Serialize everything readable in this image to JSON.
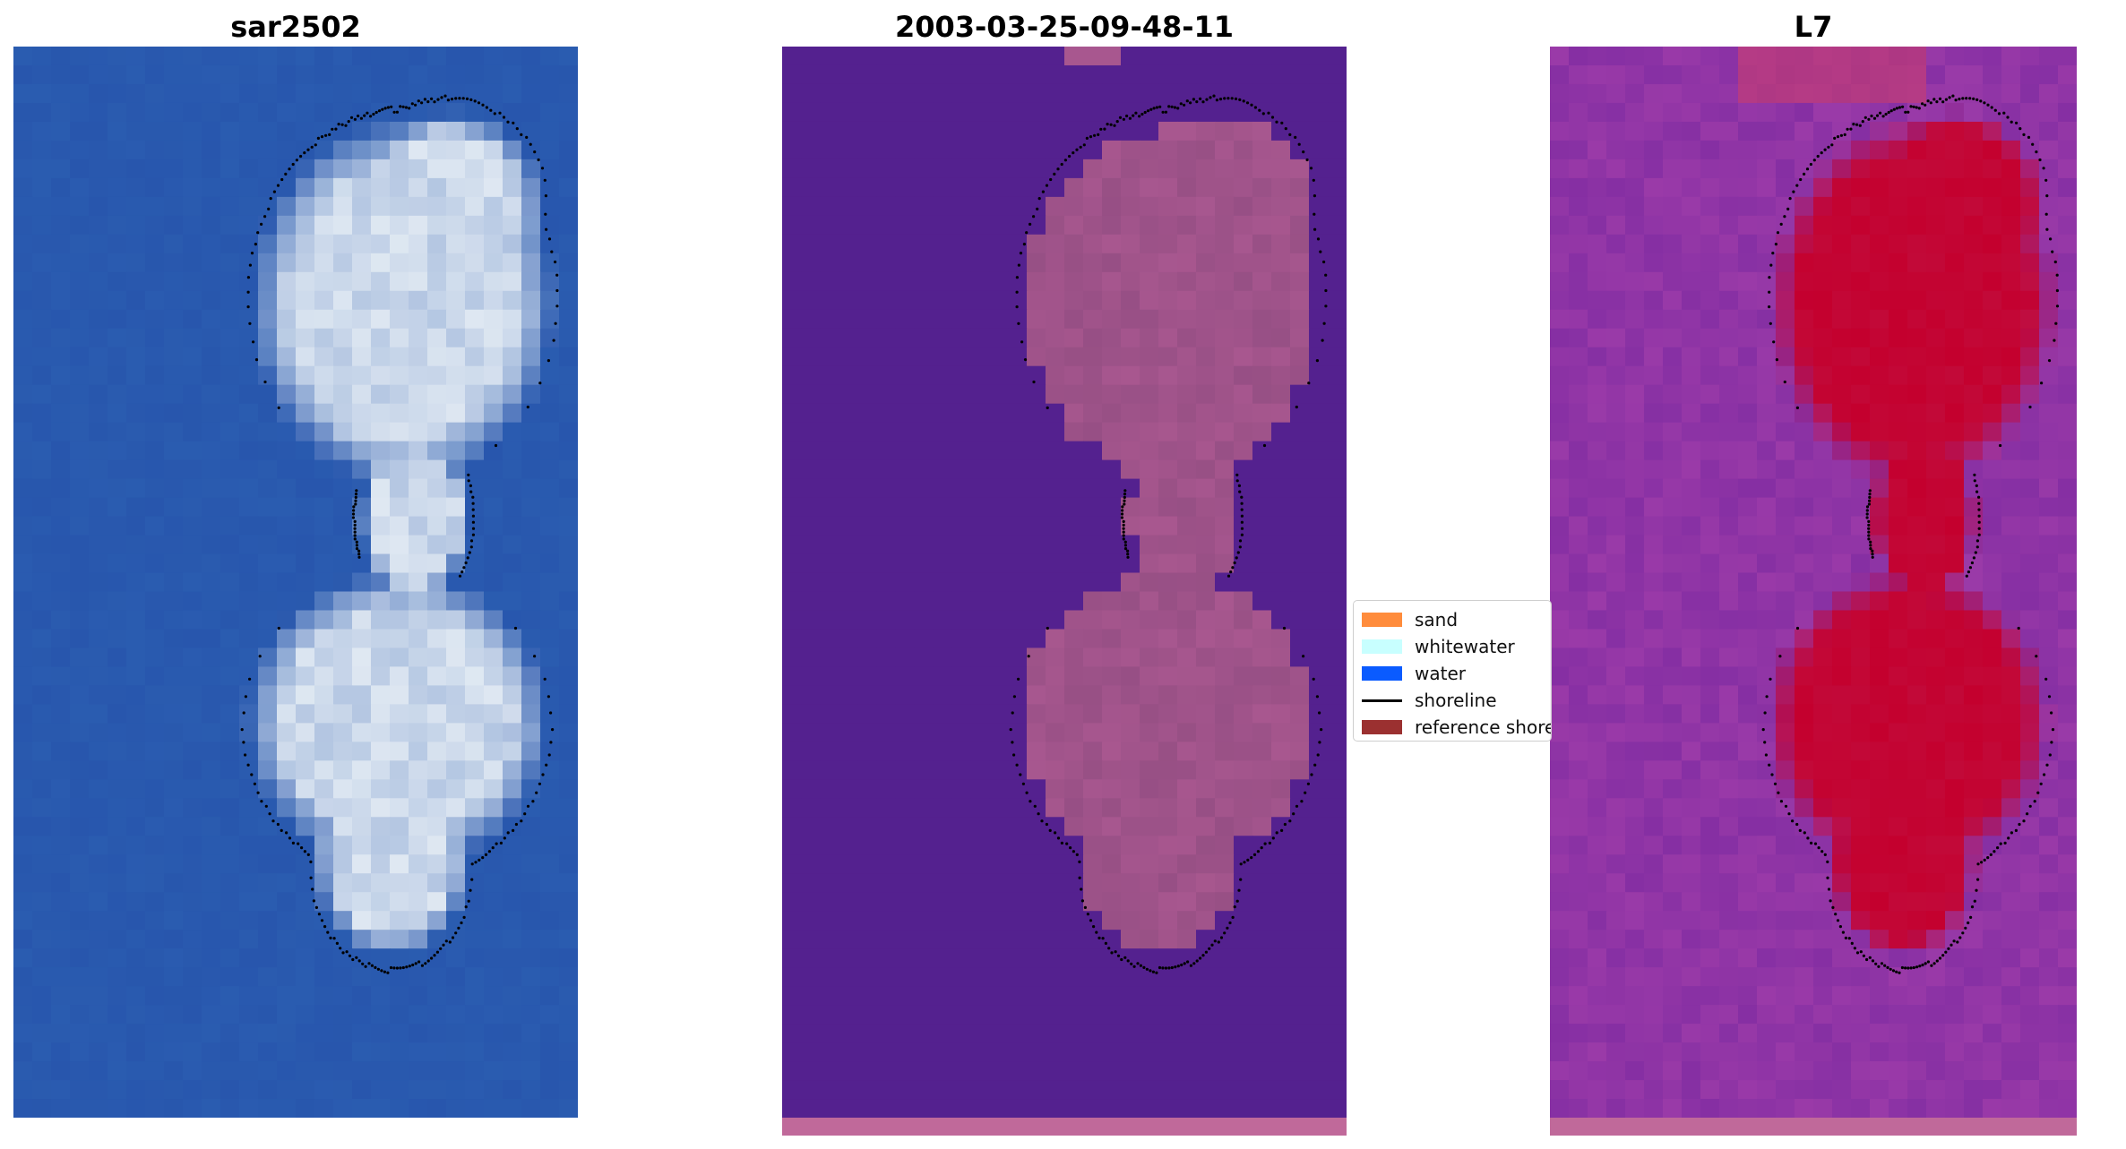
{
  "panels": [
    {
      "title": "sar2502",
      "kind": "rgb"
    },
    {
      "title": "2003-03-25-09-48-11",
      "kind": "classified"
    },
    {
      "title": "L7",
      "kind": "index"
    }
  ],
  "legend": {
    "items": [
      {
        "label": "sand",
        "type": "patch",
        "color": "#ff8c3c"
      },
      {
        "label": "whitewater",
        "type": "patch",
        "color": "#c8ffff"
      },
      {
        "label": "water",
        "type": "patch",
        "color": "#0a5bff"
      },
      {
        "label": "shoreline",
        "type": "line",
        "color": "#000000"
      },
      {
        "label": "reference shoreline",
        "type": "patch",
        "color": "#9b3030"
      }
    ]
  },
  "colors": {
    "rgb_water": "#2a5cb0",
    "rgb_land": "#dfe8f2",
    "class_water": "#54218f",
    "class_land": "#a8578f",
    "index_low": "#9a3aa8",
    "index_high": "#c4002e",
    "contour": "#000000"
  }
}
